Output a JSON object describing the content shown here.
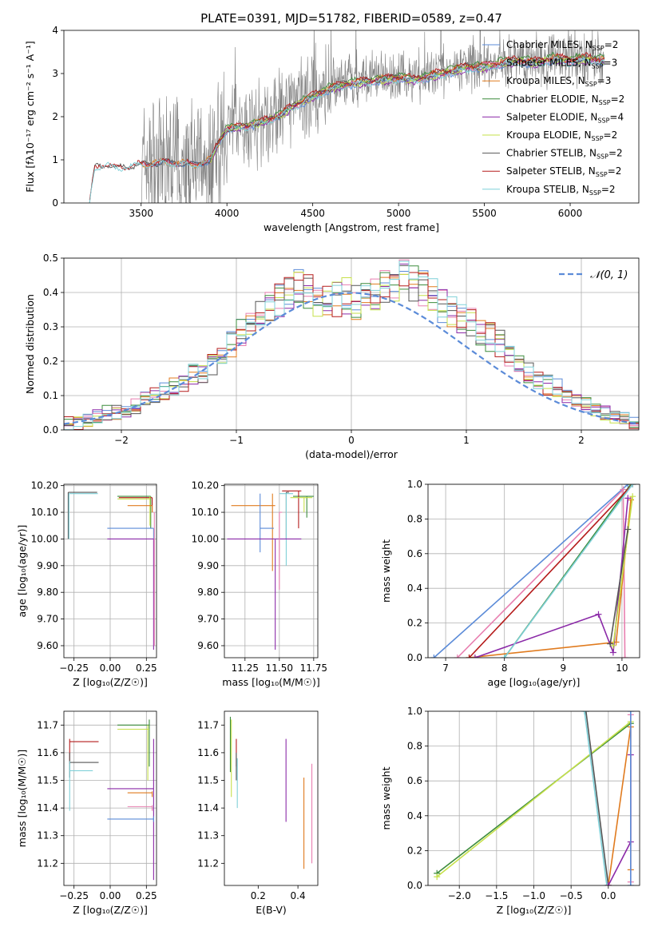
{
  "colors": {
    "c_miles": "#5b8bd8",
    "s_miles": "#e87fb0",
    "k_miles": "#e07b1f",
    "c_elodie": "#3c8c3c",
    "s_elodie": "#8b2aa8",
    "k_elodie": "#c6e04a",
    "c_stelib": "#555555",
    "s_stelib": "#b51b1b",
    "k_stelib": "#7fd0d8",
    "gray_data": "#808080",
    "normal": "#5b8bd8"
  },
  "chart_data": [
    {
      "id": "spectrum",
      "type": "line",
      "title": "PLATE=0391, MJD=51782, FIBERID=0589, z=0.47",
      "xlabel": "wavelength [Angstrom, rest frame]",
      "ylabel": "Flux [fλ10⁻¹⁷ erg cm⁻² s⁻¹ A⁻¹]",
      "xlim": [
        3050,
        6400
      ],
      "ylim": [
        0,
        4
      ],
      "xticks": [
        3500,
        4000,
        4500,
        5000,
        5500,
        6000
      ],
      "yticks": [
        0,
        1,
        2,
        3,
        4
      ],
      "grid": false,
      "legend_position": "top-right",
      "legend": [
        {
          "label": "Chabrier MILES, N",
          "sub": "SSP",
          "suffix": "=2",
          "color_key": "c_miles"
        },
        {
          "label": "Salpeter MILES, N",
          "sub": "SSP",
          "suffix": "=3",
          "color_key": "s_miles"
        },
        {
          "label": "Kroupa MILES, N",
          "sub": "SSP",
          "suffix": "=3",
          "color_key": "k_miles"
        },
        {
          "label": "Chabrier ELODIE, N",
          "sub": "SSP",
          "suffix": "=2",
          "color_key": "c_elodie"
        },
        {
          "label": "Salpeter ELODIE, N",
          "sub": "SSP",
          "suffix": "=4",
          "color_key": "s_elodie"
        },
        {
          "label": "Kroupa ELODIE, N",
          "sub": "SSP",
          "suffix": "=2",
          "color_key": "k_elodie"
        },
        {
          "label": "Chabrier STELIB, N",
          "sub": "SSP",
          "suffix": "=2",
          "color_key": "c_stelib"
        },
        {
          "label": "Salpeter STELIB, N",
          "sub": "SSP",
          "suffix": "=2",
          "color_key": "s_stelib"
        },
        {
          "label": "Kroupa STELIB, N",
          "sub": "SSP",
          "suffix": "=2",
          "color_key": "k_stelib"
        }
      ],
      "data_range": [
        3500,
        6200
      ],
      "stelib_range": [
        3200,
        6200
      ],
      "model_level_points": {
        "x": [
          3200,
          3230,
          3260,
          3300,
          3350,
          3400,
          3500,
          3600,
          3700,
          3800,
          3900,
          3950,
          4000,
          4100,
          4200,
          4300,
          4400,
          4500,
          4600,
          4700,
          4800,
          4900,
          5000,
          5100,
          5200,
          5300,
          5400,
          5500,
          5600,
          5700,
          5800,
          5900,
          6000,
          6100,
          6200
        ],
        "y": [
          0.0,
          0.85,
          0.88,
          0.9,
          0.82,
          0.85,
          0.9,
          0.95,
          0.95,
          0.9,
          1.0,
          1.4,
          1.75,
          1.8,
          1.9,
          2.05,
          2.3,
          2.5,
          2.7,
          2.8,
          2.85,
          2.9,
          2.95,
          2.9,
          3.0,
          3.1,
          3.2,
          3.2,
          3.3,
          3.35,
          3.3,
          3.4,
          3.35,
          3.4,
          3.35
        ]
      }
    },
    {
      "id": "residuals",
      "type": "bar",
      "xlabel": "(data-model)/error",
      "ylabel": "Normed distribution",
      "xlim": [
        -2.5,
        2.5
      ],
      "ylim": [
        0,
        0.5
      ],
      "xticks": [
        -2,
        -1,
        0,
        1,
        2
      ],
      "yticks": [
        0.0,
        0.1,
        0.2,
        0.3,
        0.4,
        0.5
      ],
      "grid": true,
      "legend_position": "top-right",
      "legend": [
        {
          "label": "𝒩(0, 1)",
          "color_key": "normal"
        }
      ],
      "bin_edges_step": 0.1,
      "histogram_heights": [
        0.02,
        0.02,
        0.03,
        0.04,
        0.05,
        0.05,
        0.06,
        0.07,
        0.09,
        0.1,
        0.11,
        0.13,
        0.14,
        0.16,
        0.17,
        0.19,
        0.22,
        0.25,
        0.28,
        0.31,
        0.33,
        0.36,
        0.38,
        0.4,
        0.42,
        0.4,
        0.38,
        0.37,
        0.38,
        0.39,
        0.37,
        0.38,
        0.4,
        0.41,
        0.42,
        0.44,
        0.43,
        0.41,
        0.39,
        0.36,
        0.34,
        0.33,
        0.31,
        0.29,
        0.27,
        0.25,
        0.22,
        0.2,
        0.17,
        0.15,
        0.13,
        0.12,
        0.1,
        0.08,
        0.07,
        0.06,
        0.05,
        0.04,
        0.03,
        0.02
      ]
    },
    {
      "id": "age_vs_Z",
      "type": "scatter",
      "xlabel": "Z [log₁₀(Z/Z☉)]",
      "ylabel": "age  [log₁₀(age/yr)]",
      "xlim": [
        -0.32,
        0.32
      ],
      "ylim": [
        9.555,
        10.205
      ],
      "xticks": [
        -0.25,
        0.0,
        0.25
      ],
      "xtick_labels": [
        "−0.25",
        "0.00",
        "0.25"
      ],
      "yticks": [
        9.6,
        9.7,
        9.8,
        9.9,
        10.0,
        10.1,
        10.2
      ],
      "grid": true,
      "errorbars": [
        {
          "color_key": "c_stelib",
          "x": -0.29,
          "xlo": -0.29,
          "xhi": -0.09,
          "y": 10.175,
          "ylo": 10.0,
          "yhi": 10.175
        },
        {
          "color_key": "k_stelib",
          "x": -0.285,
          "xlo": -0.285,
          "xhi": -0.085,
          "y": 10.17,
          "ylo": 10.0,
          "yhi": 10.17
        },
        {
          "color_key": "c_elodie",
          "x": 0.28,
          "xlo": 0.05,
          "xhi": 0.28,
          "y": 10.16,
          "ylo": 10.04,
          "yhi": 10.16
        },
        {
          "color_key": "s_stelib",
          "x": 0.29,
          "xlo": 0.06,
          "xhi": 0.29,
          "y": 10.155,
          "ylo": 10.1,
          "yhi": 10.155
        },
        {
          "color_key": "k_elodie",
          "x": 0.275,
          "xlo": 0.05,
          "xhi": 0.275,
          "y": 10.15,
          "ylo": 10.05,
          "yhi": 10.16
        },
        {
          "color_key": "k_miles",
          "x": 0.29,
          "xlo": 0.12,
          "xhi": 0.29,
          "y": 10.125,
          "ylo": 10.1,
          "yhi": 10.125
        },
        {
          "color_key": "c_miles",
          "x": 0.3,
          "xlo": -0.02,
          "xhi": 0.3,
          "y": 10.04,
          "ylo": 10.0,
          "yhi": 10.04
        },
        {
          "color_key": "s_elodie",
          "x": 0.3,
          "xlo": -0.02,
          "xhi": 0.3,
          "y": 10.0,
          "ylo": 9.585,
          "yhi": 10.0
        },
        {
          "color_key": "s_miles",
          "x": 0.305,
          "xlo": 0.3,
          "xhi": 0.305,
          "y": 10.1,
          "ylo": 9.6,
          "yhi": 10.1
        }
      ]
    },
    {
      "id": "age_vs_mass",
      "type": "scatter",
      "xlabel": "mass [log₁₀(M/M☉)]",
      "ylabel": "",
      "xlim": [
        11.1,
        11.78
      ],
      "ylim": [
        9.555,
        10.205
      ],
      "xticks": [
        11.25,
        11.5,
        11.75
      ],
      "xtick_labels": [
        "11.25",
        "11.50",
        "11.75"
      ],
      "yticks": [
        9.6,
        9.7,
        9.8,
        9.9,
        10.0,
        10.1,
        10.2
      ],
      "grid": true,
      "errorbars": [
        {
          "color_key": "c_stelib",
          "x": 11.55,
          "xlo": 11.55,
          "xhi": 11.57,
          "y": 10.175,
          "ylo": 10.0,
          "yhi": 10.175
        },
        {
          "color_key": "k_stelib",
          "x": 11.55,
          "xlo": 11.5,
          "xhi": 11.6,
          "y": 10.17,
          "ylo": 9.9,
          "yhi": 10.17
        },
        {
          "color_key": "c_elodie",
          "x": 11.7,
          "xlo": 11.6,
          "xhi": 11.75,
          "y": 10.16,
          "ylo": 10.08,
          "yhi": 10.16
        },
        {
          "color_key": "s_stelib",
          "x": 11.64,
          "xlo": 11.52,
          "xhi": 11.66,
          "y": 10.18,
          "ylo": 10.04,
          "yhi": 10.18
        },
        {
          "color_key": "k_elodie",
          "x": 11.68,
          "xlo": 11.58,
          "xhi": 11.74,
          "y": 10.155,
          "ylo": 10.1,
          "yhi": 10.155
        },
        {
          "color_key": "k_miles",
          "x": 11.45,
          "xlo": 11.15,
          "xhi": 11.47,
          "y": 10.125,
          "ylo": 9.88,
          "yhi": 10.17
        },
        {
          "color_key": "c_miles",
          "x": 11.36,
          "xlo": 11.36,
          "xhi": 11.46,
          "y": 10.04,
          "ylo": 9.95,
          "yhi": 10.17
        },
        {
          "color_key": "s_elodie",
          "x": 11.47,
          "xlo": 11.12,
          "xhi": 11.66,
          "y": 10.0,
          "ylo": 9.585,
          "yhi": 10.0
        },
        {
          "color_key": "s_miles",
          "x": 11.5,
          "xlo": 11.5,
          "xhi": 11.52,
          "y": 10.1,
          "ylo": 9.81,
          "yhi": 10.1
        }
      ]
    },
    {
      "id": "massweight_vs_age",
      "type": "line",
      "xlabel": "age  [log₁₀(age/yr)]",
      "ylabel": "mass weight",
      "xlim": [
        6.7,
        10.3
      ],
      "ylim": [
        0,
        1
      ],
      "xticks": [
        7,
        8,
        9,
        10
      ],
      "yticks": [
        0.0,
        0.2,
        0.4,
        0.6,
        0.8,
        1.0
      ],
      "grid": true,
      "series": [
        {
          "color_key": "c_miles",
          "x": [
            6.8,
            10.1
          ],
          "y": [
            0.0,
            1.0
          ]
        },
        {
          "color_key": "s_miles",
          "x": [
            7.2,
            10.02,
            10.05
          ],
          "y": [
            0.0,
            0.97,
            0.0
          ]
        },
        {
          "color_key": "k_miles",
          "x": [
            7.4,
            9.9,
            10.15
          ],
          "y": [
            0.0,
            0.09,
            0.91
          ]
        },
        {
          "color_key": "c_elodie",
          "x": [
            8.0,
            10.15
          ],
          "y": [
            0.0,
            1.0
          ]
        },
        {
          "color_key": "s_elodie",
          "x": [
            7.5,
            9.6,
            9.85,
            10.1
          ],
          "y": [
            0.0,
            0.25,
            0.03,
            0.92
          ]
        },
        {
          "color_key": "k_elodie",
          "x": [
            9.85,
            10.18
          ],
          "y": [
            0.07,
            0.93
          ]
        },
        {
          "color_key": "c_stelib",
          "x": [
            9.8,
            10.1
          ],
          "y": [
            0.08,
            0.74
          ]
        },
        {
          "color_key": "s_stelib",
          "x": [
            7.4,
            10.18
          ],
          "y": [
            0.0,
            1.0
          ]
        },
        {
          "color_key": "k_stelib",
          "x": [
            8.0,
            10.18
          ],
          "y": [
            0.0,
            1.0
          ]
        }
      ]
    },
    {
      "id": "mass_vs_Z",
      "type": "scatter",
      "xlabel": "Z [log₁₀(Z/Z☉)]",
      "ylabel": "mass [log₁₀(M/M☉)]",
      "xlim": [
        -0.32,
        0.32
      ],
      "ylim": [
        11.12,
        11.75
      ],
      "xticks": [
        -0.25,
        0.0,
        0.25
      ],
      "xtick_labels": [
        "−0.25",
        "0.00",
        "0.25"
      ],
      "yticks": [
        11.2,
        11.3,
        11.4,
        11.5,
        11.6,
        11.7
      ],
      "grid": true,
      "errorbars": [
        {
          "color_key": "s_stelib",
          "x": -0.28,
          "xlo": -0.28,
          "xhi": -0.08,
          "y": 11.64,
          "ylo": 11.56,
          "yhi": 11.65
        },
        {
          "color_key": "c_stelib",
          "x": -0.28,
          "xlo": -0.28,
          "xhi": -0.08,
          "y": 11.565,
          "ylo": 11.51,
          "yhi": 11.6
        },
        {
          "color_key": "k_stelib",
          "x": -0.28,
          "xlo": -0.28,
          "xhi": -0.12,
          "y": 11.535,
          "ylo": 11.39,
          "yhi": 11.57
        },
        {
          "color_key": "c_elodie",
          "x": 0.27,
          "xlo": 0.05,
          "xhi": 0.27,
          "y": 11.7,
          "ylo": 11.55,
          "yhi": 11.72
        },
        {
          "color_key": "k_elodie",
          "x": 0.26,
          "xlo": 0.05,
          "xhi": 0.27,
          "y": 11.685,
          "ylo": 11.5,
          "yhi": 11.7
        },
        {
          "color_key": "s_elodie",
          "x": 0.3,
          "xlo": -0.02,
          "xhi": 0.3,
          "y": 11.47,
          "ylo": 11.14,
          "yhi": 11.65
        },
        {
          "color_key": "k_miles",
          "x": 0.29,
          "xlo": 0.12,
          "xhi": 0.29,
          "y": 11.455,
          "ylo": 11.44,
          "yhi": 11.46
        },
        {
          "color_key": "s_miles",
          "x": 0.29,
          "xlo": 0.12,
          "xhi": 0.29,
          "y": 11.405,
          "ylo": 11.39,
          "yhi": 11.41
        },
        {
          "color_key": "c_miles",
          "x": 0.3,
          "xlo": -0.02,
          "xhi": 0.3,
          "y": 11.36,
          "ylo": 11.35,
          "yhi": 11.37
        }
      ]
    },
    {
      "id": "mass_vs_EBV",
      "type": "scatter",
      "xlabel": "E(B-V)",
      "ylabel": "",
      "xlim": [
        0.03,
        0.5
      ],
      "ylim": [
        11.12,
        11.75
      ],
      "xticks": [
        0.2,
        0.4
      ],
      "yticks": [
        11.2,
        11.3,
        11.4,
        11.5,
        11.6,
        11.7
      ],
      "grid": false,
      "errorbars": [
        {
          "color_key": "c_elodie",
          "x": 0.06,
          "y": 11.64,
          "ylo": 11.53,
          "yhi": 11.73
        },
        {
          "color_key": "k_elodie",
          "x": 0.065,
          "y": 11.6,
          "ylo": 11.44,
          "yhi": 11.72
        },
        {
          "color_key": "s_stelib",
          "x": 0.09,
          "y": 11.6,
          "ylo": 11.55,
          "yhi": 11.65
        },
        {
          "color_key": "c_stelib",
          "x": 0.09,
          "y": 11.56,
          "ylo": 11.5,
          "yhi": 11.6
        },
        {
          "color_key": "k_stelib",
          "x": 0.095,
          "y": 11.5,
          "ylo": 11.4,
          "yhi": 11.58
        },
        {
          "color_key": "s_elodie",
          "x": 0.34,
          "y": 11.5,
          "ylo": 11.35,
          "yhi": 11.65
        },
        {
          "color_key": "k_miles",
          "x": 0.43,
          "y": 11.35,
          "ylo": 11.18,
          "yhi": 11.51
        },
        {
          "color_key": "s_miles",
          "x": 0.47,
          "y": 11.38,
          "ylo": 11.2,
          "yhi": 11.56
        }
      ]
    },
    {
      "id": "massweight_vs_Z",
      "type": "line",
      "xlabel": "Z [log₁₀(Z/Z☉)]",
      "ylabel": "mass weight",
      "xlim": [
        -2.42,
        0.42
      ],
      "ylim": [
        0,
        1
      ],
      "xticks": [
        -2.0,
        -1.5,
        -1.0,
        -0.5,
        0.0
      ],
      "xtick_labels": [
        "−2.0",
        "−1.5",
        "−1.0",
        "−0.5",
        "0.0"
      ],
      "yticks": [
        0.0,
        0.2,
        0.4,
        0.6,
        0.8,
        1.0
      ],
      "grid": true,
      "series": [
        {
          "color_key": "c_elodie",
          "x": [
            -2.3,
            0.3
          ],
          "y": [
            0.07,
            0.93
          ]
        },
        {
          "color_key": "k_elodie",
          "x": [
            -2.3,
            0.3
          ],
          "y": [
            0.05,
            0.94
          ]
        },
        {
          "color_key": "c_stelib",
          "x": [
            -0.3,
            0.0
          ],
          "y": [
            1.0,
            0.0
          ]
        },
        {
          "color_key": "k_stelib",
          "x": [
            -0.32,
            -0.02
          ],
          "y": [
            1.0,
            0.0
          ]
        },
        {
          "color_key": "k_miles",
          "x": [
            0.0,
            0.3,
            0.3
          ],
          "y": [
            0.0,
            0.91,
            0.09
          ]
        },
        {
          "color_key": "s_elodie",
          "x": [
            0.0,
            0.3,
            0.3
          ],
          "y": [
            0.0,
            0.25,
            0.75
          ]
        },
        {
          "color_key": "s_miles",
          "x": [
            0.3,
            0.3
          ],
          "y": [
            0.02,
            0.98
          ]
        },
        {
          "color_key": "c_miles",
          "x": [
            0.3,
            0.3
          ],
          "y": [
            0.0,
            1.0
          ]
        }
      ]
    }
  ]
}
